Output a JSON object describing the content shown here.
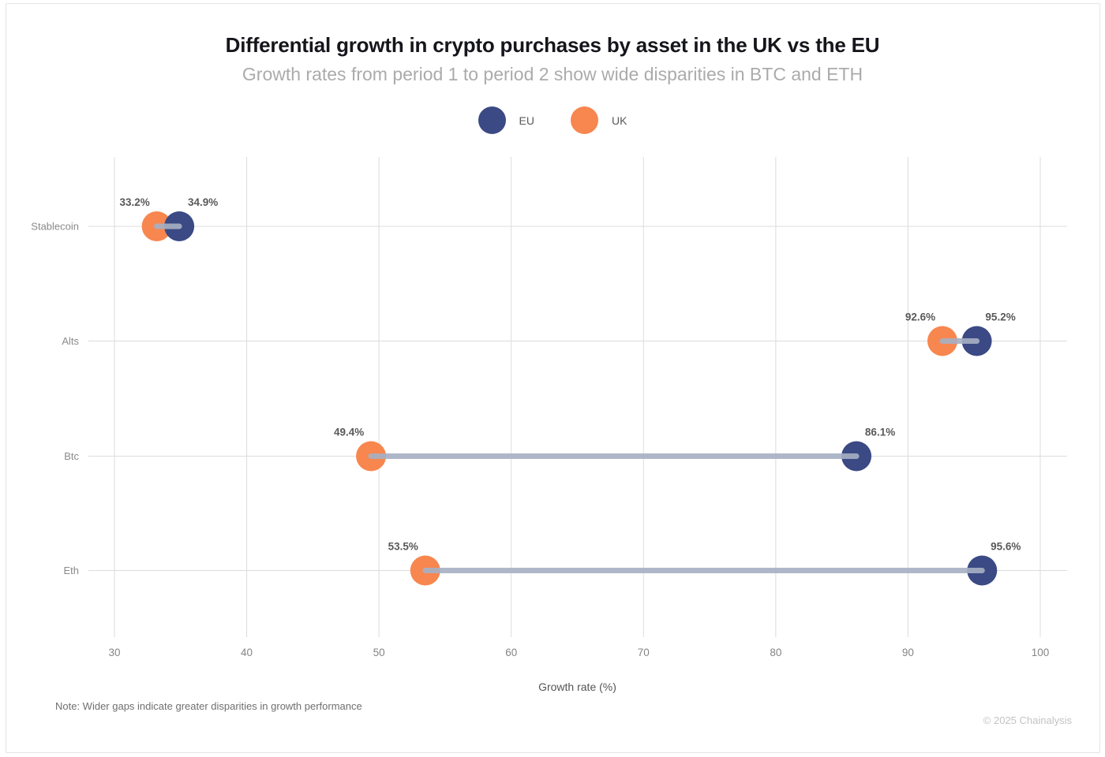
{
  "header": {
    "title": "Differential growth in crypto purchases by asset in the UK vs the EU",
    "subtitle": "Growth rates from period 1 to period 2 show wide disparities in BTC and ETH"
  },
  "legend": {
    "items": [
      {
        "label": "EU",
        "color": "#3B4A84"
      },
      {
        "label": "UK",
        "color": "#F8864F"
      }
    ]
  },
  "chart_data": {
    "type": "dumbbell",
    "title": "Differential growth in crypto purchases by asset in the UK vs the EU",
    "subtitle": "Growth rates from period 1 to period 2 show wide disparities in BTC and ETH",
    "categories": [
      "Stablecoin",
      "Alts",
      "Btc",
      "Eth"
    ],
    "series": [
      {
        "name": "EU",
        "color": "#3B4A84",
        "values": [
          34.9,
          95.2,
          86.1,
          95.6
        ],
        "labels": [
          "34.9%",
          "95.2%",
          "86.1%",
          "95.6%"
        ]
      },
      {
        "name": "UK",
        "color": "#F8864F",
        "values": [
          33.2,
          92.6,
          49.4,
          53.5
        ],
        "labels": [
          "33.2%",
          "92.6%",
          "49.4%",
          "53.5%"
        ]
      }
    ],
    "xlabel": "Growth rate (%)",
    "ylabel": "",
    "x_ticks": [
      30,
      40,
      50,
      60,
      70,
      80,
      90,
      100
    ],
    "xlim": [
      30,
      100
    ],
    "grid": true,
    "legend_position": "top-center",
    "connector_color": "#A7B1C4",
    "grid_color": "#DCDCDC",
    "point_label_color": "#595959"
  },
  "footer": {
    "note": "Note: Wider gaps indicate greater disparities in growth performance",
    "copyright": "© 2025 Chainalysis"
  }
}
